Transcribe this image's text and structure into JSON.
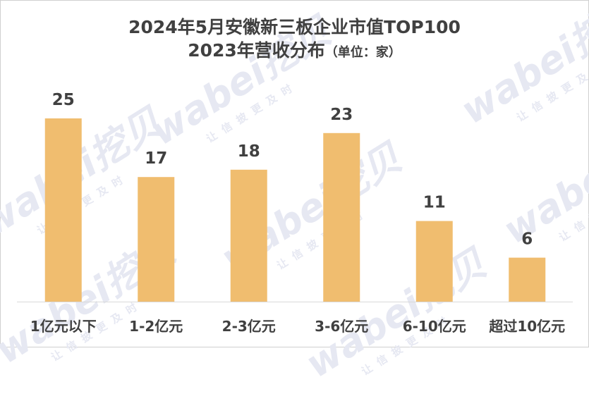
{
  "title_line1": "2024年5月安徽新三板企业市值TOP100",
  "title_line2": "2023年营收分布",
  "unit": "（单位：家）",
  "watermark": {
    "brand": "wabei挖贝",
    "slogan": "让信披更及时"
  },
  "colors": {
    "bar": "#f0bd6f",
    "label": "#404040",
    "axis": "#d9d9d9"
  },
  "chart_data": {
    "type": "bar",
    "title": "2024年5月安徽新三板企业市值TOP100 2023年营收分布（单位：家）",
    "categories": [
      "1亿元以下",
      "1-2亿元",
      "2-3亿元",
      "3-6亿元",
      "6-10亿元",
      "超过10亿元"
    ],
    "values": [
      25,
      17,
      18,
      23,
      11,
      6
    ],
    "xlabel": "",
    "ylabel": "",
    "ylim": [
      0,
      28
    ],
    "grid": false,
    "legend": "none"
  }
}
